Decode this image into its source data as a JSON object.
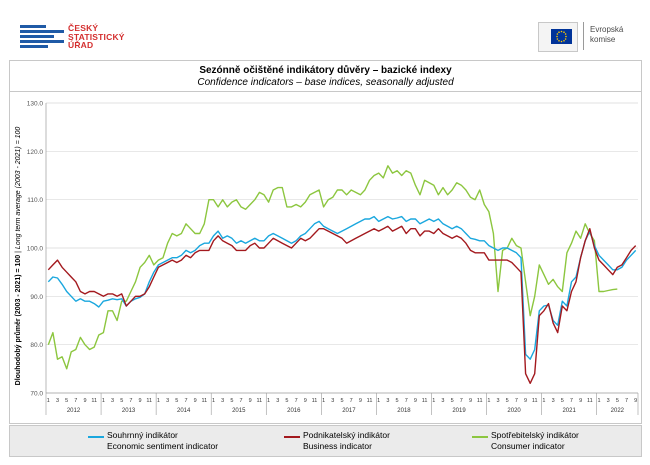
{
  "header": {
    "csu_logo_lines": [
      "ČESKÝ",
      "STATISTICKÝ",
      "ÚŘAD"
    ],
    "eu_logo_lines": [
      "Evropská",
      "komise"
    ]
  },
  "colors": {
    "esi": "#1aa7de",
    "bci": "#a3191e",
    "cci": "#8cc63f",
    "grid": "#d9d9d9",
    "axis": "#9a9a9a"
  },
  "chart_data": {
    "type": "line",
    "title": "Sezónně očištěné indikátory důvěry – bazické indexy",
    "subtitle": "Confidence indicators – base indices, seasonally adjusted",
    "ylabel": "Dlouhodobý průměr (2003 - 2021) = 100",
    "ylabel_en": "Long term average (2003 - 2021) = 100",
    "ylim": [
      70,
      130
    ],
    "yticks": [
      "70.0",
      "80.0",
      "90.0",
      "100.0",
      "110.0",
      "120.0",
      "130.0"
    ],
    "grid": true,
    "x_start": "2012-01",
    "x_month_labels": [
      "1",
      "3",
      "5",
      "7",
      "9",
      "11"
    ],
    "years": [
      "2012",
      "2013",
      "2014",
      "2015",
      "2016",
      "2017",
      "2018",
      "2019",
      "2020",
      "2021",
      "2022"
    ],
    "legend_position": "bottom",
    "series": [
      {
        "name": "Souhrnný indikátor",
        "name_en": "Economic sentiment indicator",
        "values": [
          93,
          94,
          93.8,
          92.5,
          91,
          90,
          89,
          89.5,
          89,
          89,
          88.5,
          87.8,
          89,
          89.2,
          89.5,
          89.3,
          89.5,
          88,
          89,
          89.5,
          89.8,
          90.5,
          93,
          95,
          96.5,
          97,
          97.5,
          98,
          98,
          98.5,
          99.5,
          99,
          99.5,
          100.5,
          101,
          101,
          102.5,
          103.5,
          102,
          102.5,
          102,
          101,
          101.5,
          101,
          101.5,
          102,
          101.5,
          101.5,
          102.5,
          103,
          102.5,
          102,
          101.5,
          101,
          101.5,
          102.5,
          103,
          104,
          105,
          105.5,
          104.5,
          104,
          103.5,
          103,
          103.5,
          104,
          104.5,
          105,
          105.5,
          106,
          106,
          106.5,
          105.5,
          106,
          106.5,
          106,
          106.2,
          106.5,
          105.5,
          106,
          106,
          105,
          105.5,
          106,
          105.5,
          106,
          105,
          104.5,
          104,
          104.5,
          104,
          103,
          102,
          101.8,
          101.5,
          101.5,
          100.5,
          100,
          99.5,
          100,
          100,
          99.5,
          99,
          98,
          78,
          77,
          79,
          87,
          88,
          88.2,
          85,
          84,
          89,
          88,
          93,
          94,
          98,
          101.5,
          103.5,
          100.5,
          98.5,
          97.5,
          96.5,
          95.5,
          95.5,
          96,
          97.5,
          98.5,
          99.5
        ]
      },
      {
        "name": "Podnikatelský indikátor",
        "name_en": "Business indicator",
        "values": [
          95.5,
          96.5,
          97.5,
          96,
          95,
          94,
          93,
          91,
          90.5,
          91,
          91,
          90.5,
          90,
          90.5,
          90.5,
          90,
          90.5,
          88,
          89,
          90,
          90,
          90.5,
          92,
          94,
          96,
          96.5,
          97,
          97.5,
          97,
          97.5,
          98.5,
          98,
          99,
          99.5,
          99.5,
          99.5,
          101.5,
          102.5,
          101.5,
          101,
          100.5,
          99.5,
          99.5,
          99.5,
          100.5,
          101,
          100,
          100,
          101,
          102,
          101.5,
          101,
          100.5,
          100,
          101,
          102,
          101.5,
          102,
          103,
          104,
          104,
          103.5,
          103,
          102.5,
          102,
          101,
          101.5,
          102,
          102.5,
          103,
          103.5,
          104,
          103.5,
          104,
          104.5,
          103.5,
          104,
          104.5,
          103,
          104,
          104,
          102.5,
          103.5,
          103.5,
          103,
          104,
          103,
          102.5,
          102,
          102.5,
          102,
          101,
          99.5,
          99,
          99,
          99,
          97.5,
          97.5,
          97.5,
          97.5,
          97.5,
          97,
          96,
          95,
          74,
          72,
          74,
          86,
          87,
          88.5,
          84.5,
          82.5,
          88,
          87,
          91,
          93,
          98,
          101.5,
          104,
          100,
          97.5,
          96.5,
          95.5,
          94.5,
          96,
          96.5,
          98,
          99.5,
          100.5
        ]
      },
      {
        "name": "Spotřebitelský indikátor",
        "name_en": "Consumer indicator",
        "values": [
          80,
          82.5,
          77,
          77.5,
          75,
          78.5,
          79,
          81.5,
          80,
          79,
          79.5,
          82,
          82.5,
          87,
          87,
          85,
          89,
          89,
          91,
          93,
          96,
          97,
          98.5,
          96.5,
          97.5,
          98,
          101,
          103,
          102.5,
          103,
          105,
          104,
          103,
          103,
          105,
          110,
          110,
          108.5,
          110,
          108.5,
          109.5,
          110,
          108.5,
          108,
          109,
          110,
          111.5,
          111,
          109.5,
          112,
          112.5,
          112.5,
          108.5,
          108.5,
          109,
          108.5,
          109.5,
          111,
          111.5,
          112,
          108.5,
          110,
          110.5,
          112,
          112,
          111,
          112,
          111.5,
          111,
          112,
          114,
          115,
          115.5,
          114.5,
          117,
          115.5,
          116,
          115,
          116,
          115.5,
          113,
          111,
          114,
          113.5,
          113,
          111,
          112.5,
          111,
          112,
          113.5,
          113,
          112,
          110.5,
          110,
          112,
          109,
          107.5,
          103,
          91,
          99.5,
          100,
          102,
          100.5,
          100,
          93,
          86,
          90,
          96.5,
          94.5,
          92.5,
          93.5,
          92,
          91,
          99,
          101,
          103.5,
          102,
          105,
          103,
          101.5,
          91,
          91,
          91.2,
          91.4,
          91.5
        ]
      }
    ]
  }
}
